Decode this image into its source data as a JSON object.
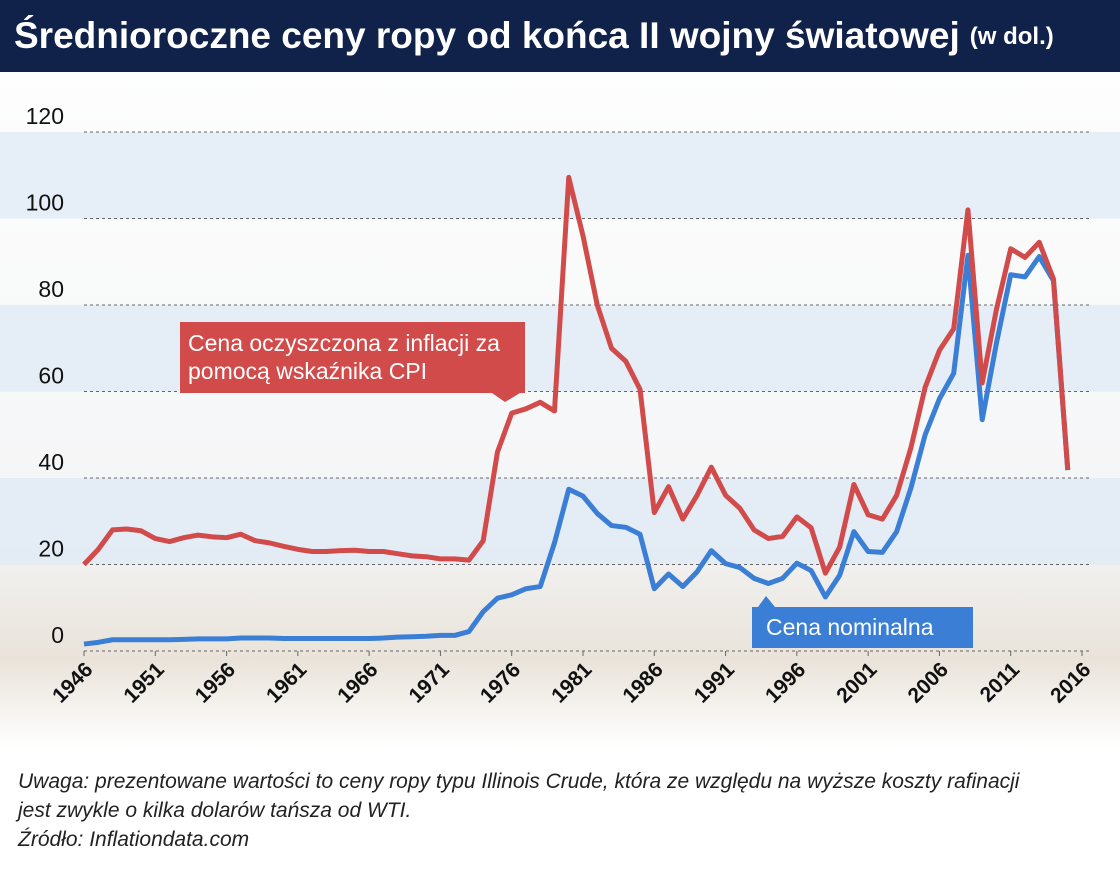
{
  "chart_data": {
    "type": "line",
    "title": "Średnioroczne ceny ropy od końca II wojny światowej",
    "subtitle": "(w dol.)",
    "x": [
      1946,
      1947,
      1948,
      1949,
      1950,
      1951,
      1952,
      1953,
      1954,
      1955,
      1956,
      1957,
      1958,
      1959,
      1960,
      1961,
      1962,
      1963,
      1964,
      1965,
      1966,
      1967,
      1968,
      1969,
      1970,
      1971,
      1972,
      1973,
      1974,
      1975,
      1976,
      1977,
      1978,
      1979,
      1980,
      1981,
      1982,
      1983,
      1984,
      1985,
      1986,
      1987,
      1988,
      1989,
      1990,
      1991,
      1992,
      1993,
      1994,
      1995,
      1996,
      1997,
      1998,
      1999,
      2000,
      2001,
      2002,
      2003,
      2004,
      2005,
      2006,
      2007,
      2008,
      2009,
      2010,
      2011,
      2012,
      2013,
      2014,
      2015
    ],
    "series": [
      {
        "name": "Cena oczyszczona z inflacji za pomocą wskaźnika CPI",
        "color": "#d24b4b",
        "values": [
          20,
          23.5,
          28,
          28.2,
          27.8,
          26,
          25.3,
          26.2,
          26.8,
          26.4,
          26.2,
          27,
          25.5,
          25,
          24.2,
          23.5,
          23,
          23,
          23.2,
          23.3,
          23,
          23,
          22.5,
          22,
          21.8,
          21.3,
          21.3,
          21,
          25.5,
          46,
          55,
          56,
          57.5,
          55.5,
          109.5,
          96,
          80,
          70,
          67,
          60.5,
          32,
          38,
          30.5,
          36,
          42.5,
          36,
          33,
          28,
          26,
          26.5,
          31,
          28.5,
          18,
          24,
          38.5,
          31.5,
          30.5,
          36,
          47,
          61,
          69.5,
          74.5,
          102,
          62,
          79,
          93,
          91,
          94.5,
          86,
          42
        ]
      },
      {
        "name": "Cena nominalna",
        "color": "#3a7fd5",
        "values": [
          1.6,
          2,
          2.6,
          2.6,
          2.6,
          2.6,
          2.6,
          2.7,
          2.8,
          2.8,
          2.8,
          3,
          3,
          3,
          2.9,
          2.9,
          2.9,
          2.9,
          2.9,
          2.9,
          2.9,
          3,
          3.2,
          3.3,
          3.4,
          3.6,
          3.6,
          4.5,
          9.1,
          12.2,
          13,
          14.4,
          14.9,
          25,
          37.4,
          35.8,
          31.8,
          29,
          28.6,
          27,
          14.4,
          17.8,
          14.9,
          18.3,
          23.2,
          20.2,
          19.3,
          16.8,
          15.6,
          16.8,
          20.3,
          18.6,
          12.5,
          17.5,
          27.6,
          23,
          22.8,
          27.6,
          37.7,
          50,
          58.3,
          64.2,
          91.5,
          53.5,
          71.2,
          87,
          86.5,
          91.2,
          85.6,
          41.8
        ]
      }
    ],
    "xlim": [
      1946,
      2016
    ],
    "xticks": [
      1946,
      1951,
      1956,
      1961,
      1966,
      1971,
      1976,
      1981,
      1986,
      1991,
      1996,
      2001,
      2006,
      2011,
      2016
    ],
    "ylim": [
      0,
      120
    ],
    "yticks": [
      0,
      20,
      40,
      60,
      80,
      100,
      120
    ],
    "grid": true,
    "note": "Uwaga: prezentowane wartości to ceny ropy typu Illinois Crude, która ze względu na wyższe koszty rafinacji jest zwykle o kilka dolarów tańsza od WTI.",
    "source": "Źródło: Inflationdata.com"
  }
}
